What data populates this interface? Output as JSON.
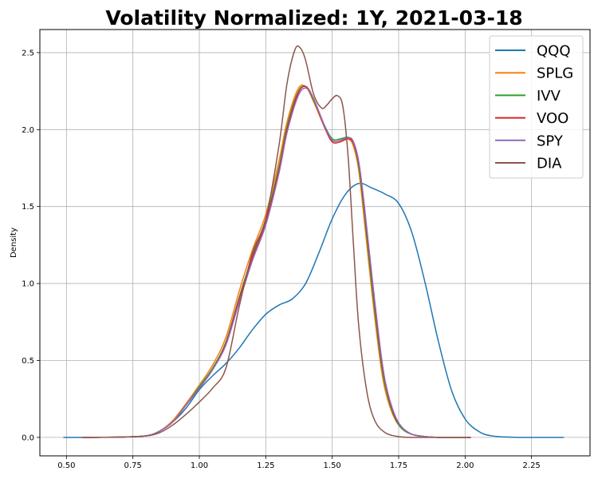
{
  "chart_data": {
    "type": "line",
    "title": "Volatility Normalized: 1Y, 2021-03-18",
    "xlabel": "",
    "ylabel": "Density",
    "xlim": [
      0.4,
      2.47
    ],
    "ylim": [
      -0.12,
      2.65
    ],
    "grid": true,
    "legend_position": "top-right",
    "x_ticks": [
      0.5,
      0.75,
      1.0,
      1.25,
      1.5,
      1.75,
      2.0,
      2.25
    ],
    "x_tick_labels": [
      "0.50",
      "0.75",
      "1.00",
      "1.25",
      "1.50",
      "1.75",
      "2.00",
      "2.25"
    ],
    "y_ticks": [
      0.0,
      0.5,
      1.0,
      1.5,
      2.0,
      2.5
    ],
    "y_tick_labels": [
      "0.0",
      "0.5",
      "1.0",
      "1.5",
      "2.0",
      "2.5"
    ],
    "series": [
      {
        "name": "QQQ",
        "color": "#1f77b4",
        "x": [
          0.49,
          0.6,
          0.7,
          0.8,
          0.85,
          0.9,
          0.95,
          1.0,
          1.05,
          1.1,
          1.15,
          1.2,
          1.25,
          1.3,
          1.35,
          1.4,
          1.45,
          1.5,
          1.55,
          1.6,
          1.65,
          1.7,
          1.75,
          1.8,
          1.85,
          1.9,
          1.95,
          2.0,
          2.05,
          2.1,
          2.2,
          2.37
        ],
        "y": [
          0.0,
          0.0,
          0.002,
          0.01,
          0.04,
          0.1,
          0.19,
          0.31,
          0.4,
          0.48,
          0.58,
          0.7,
          0.8,
          0.86,
          0.9,
          1.0,
          1.2,
          1.42,
          1.58,
          1.65,
          1.62,
          1.58,
          1.52,
          1.33,
          1.0,
          0.62,
          0.3,
          0.12,
          0.04,
          0.01,
          0.0,
          0.0
        ]
      },
      {
        "name": "SPLG",
        "color": "#ff7f0e",
        "x": [
          0.56,
          0.7,
          0.8,
          0.85,
          0.9,
          0.95,
          1.0,
          1.05,
          1.1,
          1.15,
          1.2,
          1.25,
          1.3,
          1.33,
          1.37,
          1.4,
          1.43,
          1.47,
          1.5,
          1.53,
          1.56,
          1.58,
          1.6,
          1.62,
          1.65,
          1.68,
          1.7,
          1.73,
          1.76,
          1.8,
          1.85,
          1.9,
          2.02
        ],
        "y": [
          0.0,
          0.002,
          0.01,
          0.04,
          0.11,
          0.22,
          0.34,
          0.47,
          0.65,
          0.95,
          1.22,
          1.45,
          1.8,
          2.05,
          2.26,
          2.28,
          2.18,
          2.02,
          1.93,
          1.93,
          1.94,
          1.89,
          1.73,
          1.42,
          0.93,
          0.5,
          0.3,
          0.14,
          0.06,
          0.02,
          0.005,
          0.0,
          0.0
        ]
      },
      {
        "name": "IVV",
        "color": "#2ca02c",
        "x": [
          0.56,
          0.7,
          0.8,
          0.85,
          0.9,
          0.95,
          1.0,
          1.05,
          1.1,
          1.15,
          1.2,
          1.25,
          1.3,
          1.33,
          1.37,
          1.4,
          1.43,
          1.47,
          1.5,
          1.53,
          1.56,
          1.58,
          1.6,
          1.62,
          1.65,
          1.68,
          1.7,
          1.73,
          1.76,
          1.8,
          1.85,
          1.9,
          2.02
        ],
        "y": [
          0.0,
          0.002,
          0.01,
          0.04,
          0.1,
          0.21,
          0.33,
          0.45,
          0.62,
          0.91,
          1.18,
          1.42,
          1.76,
          2.02,
          2.24,
          2.28,
          2.19,
          2.03,
          1.94,
          1.94,
          1.95,
          1.91,
          1.76,
          1.47,
          0.98,
          0.54,
          0.33,
          0.15,
          0.06,
          0.02,
          0.005,
          0.0,
          0.0
        ]
      },
      {
        "name": "VOO",
        "color": "#d62728",
        "x": [
          0.56,
          0.7,
          0.8,
          0.85,
          0.9,
          0.95,
          1.0,
          1.05,
          1.1,
          1.15,
          1.2,
          1.25,
          1.3,
          1.33,
          1.37,
          1.4,
          1.43,
          1.47,
          1.5,
          1.53,
          1.56,
          1.58,
          1.6,
          1.62,
          1.65,
          1.68,
          1.7,
          1.73,
          1.76,
          1.8,
          1.85,
          1.9,
          2.02
        ],
        "y": [
          0.0,
          0.002,
          0.01,
          0.04,
          0.1,
          0.21,
          0.32,
          0.44,
          0.61,
          0.9,
          1.17,
          1.4,
          1.74,
          2.0,
          2.23,
          2.28,
          2.2,
          2.02,
          1.92,
          1.92,
          1.94,
          1.91,
          1.78,
          1.5,
          1.02,
          0.57,
          0.35,
          0.16,
          0.07,
          0.02,
          0.005,
          0.0,
          0.0
        ]
      },
      {
        "name": "SPY",
        "color": "#9467bd",
        "x": [
          0.56,
          0.7,
          0.8,
          0.85,
          0.9,
          0.95,
          1.0,
          1.05,
          1.1,
          1.15,
          1.2,
          1.25,
          1.3,
          1.33,
          1.37,
          1.4,
          1.43,
          1.47,
          1.5,
          1.53,
          1.56,
          1.58,
          1.6,
          1.62,
          1.65,
          1.68,
          1.7,
          1.73,
          1.76,
          1.8,
          1.85,
          1.9,
          2.02
        ],
        "y": [
          0.0,
          0.002,
          0.01,
          0.04,
          0.1,
          0.21,
          0.32,
          0.44,
          0.6,
          0.88,
          1.15,
          1.38,
          1.72,
          1.98,
          2.21,
          2.27,
          2.2,
          2.03,
          1.93,
          1.93,
          1.95,
          1.92,
          1.79,
          1.52,
          1.04,
          0.59,
          0.36,
          0.17,
          0.07,
          0.02,
          0.005,
          0.0,
          0.0
        ]
      },
      {
        "name": "DIA",
        "color": "#8c564b",
        "x": [
          0.56,
          0.7,
          0.8,
          0.85,
          0.9,
          0.95,
          1.0,
          1.05,
          1.1,
          1.15,
          1.2,
          1.25,
          1.3,
          1.33,
          1.36,
          1.38,
          1.4,
          1.43,
          1.46,
          1.48,
          1.5,
          1.52,
          1.54,
          1.56,
          1.58,
          1.6,
          1.63,
          1.66,
          1.7,
          1.75,
          1.8,
          1.9,
          2.02
        ],
        "y": [
          0.0,
          0.002,
          0.01,
          0.03,
          0.08,
          0.15,
          0.23,
          0.32,
          0.45,
          0.85,
          1.2,
          1.42,
          1.9,
          2.3,
          2.52,
          2.53,
          2.45,
          2.23,
          2.14,
          2.16,
          2.2,
          2.22,
          2.15,
          1.82,
          1.25,
          0.72,
          0.3,
          0.11,
          0.03,
          0.005,
          0.0,
          0.0,
          0.0
        ]
      }
    ]
  }
}
